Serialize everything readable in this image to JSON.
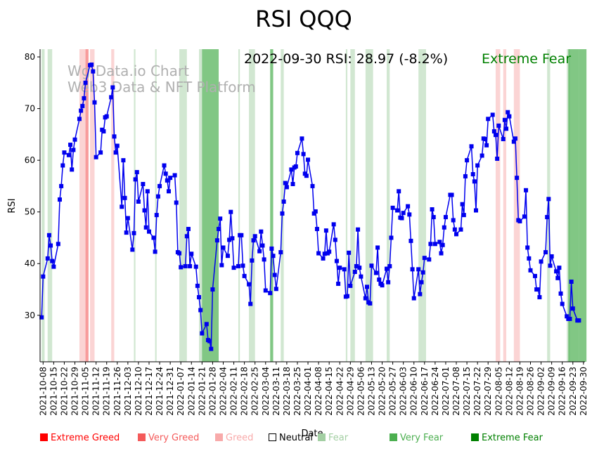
{
  "chart_data": {
    "type": "line",
    "title": "RSI QQQ",
    "xlabel": "Date",
    "ylabel": "RSI",
    "ylim": [
      21,
      81.5
    ],
    "yticks": [
      30,
      40,
      50,
      60,
      70,
      80
    ],
    "x_start": "2021-10-06",
    "x_end": "2022-10-01",
    "xticks": [
      "2021-10-08",
      "2021-10-15",
      "2021-10-22",
      "2021-10-29",
      "2021-11-05",
      "2021-11-12",
      "2021-11-19",
      "2021-11-26",
      "2021-12-03",
      "2021-12-10",
      "2021-12-17",
      "2021-12-24",
      "2021-12-31",
      "2022-01-07",
      "2022-01-14",
      "2022-01-21",
      "2022-01-28",
      "2022-02-04",
      "2022-02-11",
      "2022-02-18",
      "2022-02-25",
      "2022-03-04",
      "2022-03-11",
      "2022-03-18",
      "2022-03-25",
      "2022-04-01",
      "2022-04-08",
      "2022-04-15",
      "2022-04-22",
      "2022-04-29",
      "2022-05-06",
      "2022-05-13",
      "2022-05-20",
      "2022-05-27",
      "2022-06-03",
      "2022-06-10",
      "2022-06-17",
      "2022-06-24",
      "2022-07-01",
      "2022-07-08",
      "2022-07-15",
      "2022-07-22",
      "2022-07-29",
      "2022-08-05",
      "2022-08-12",
      "2022-08-19",
      "2022-08-26",
      "2022-09-02",
      "2022-09-09",
      "2022-09-16",
      "2022-09-23",
      "2022-09-30"
    ],
    "series": [
      {
        "name": "RSI",
        "color": "#0000ee",
        "values": [
          29.6,
          37.5,
          41,
          45.5,
          43.5,
          40.5,
          39.4,
          43.8,
          52.4,
          55,
          59,
          61.5,
          61,
          63,
          58.2,
          62,
          64,
          68,
          69.6,
          70.5,
          72,
          75,
          78.4,
          78.5,
          77.2,
          71.2,
          60.6,
          61.5,
          65.9,
          65.6,
          68.3,
          68.5,
          72.2,
          74.1,
          64.6,
          61.5,
          62.8,
          51,
          60,
          52.7,
          46,
          48.8,
          42.7,
          45.9,
          56.3,
          57.7,
          52,
          55.4,
          50.3,
          47,
          54,
          46.2,
          45,
          42.3,
          49.4,
          53,
          55,
          59,
          57.4,
          56.1,
          54,
          56.6,
          57.1,
          51.8,
          42.2,
          42,
          39.3,
          39.5,
          45.3,
          46.7,
          39.5,
          41.9,
          39.4,
          35.7,
          33.5,
          31,
          26.5,
          28.3,
          25.2,
          25,
          23.5,
          35,
          44.5,
          46.7,
          48.7,
          39.7,
          43.1,
          41.5,
          44.6,
          50,
          44.9,
          39.2,
          39.5,
          45.5,
          45.5,
          39.6,
          37.6,
          36,
          32.2,
          40.6,
          44.5,
          45.3,
          42.4,
          46.2,
          43.5,
          40.8,
          34.8,
          34.3,
          42.9,
          41.5,
          37.8,
          35.1,
          42.2,
          49.7,
          52,
          55.6,
          54.8,
          58.2,
          55.4,
          58.6,
          58.8,
          61.4,
          64.2,
          61.2,
          57.4,
          57,
          60.1,
          55,
          49.7,
          50.1,
          46.7,
          42,
          41,
          41.9,
          46.4,
          42,
          42.3,
          47.6,
          44.6,
          40.5,
          36.1,
          39.2,
          38.9,
          33.6,
          33.7,
          42.1,
          35.7,
          38.4,
          39.5,
          46.6,
          39.2,
          37.5,
          33.3,
          35.5,
          32.5,
          32.3,
          39.6,
          38.2,
          43.1,
          36.9,
          36.1,
          35.8,
          39,
          36.4,
          39.5,
          45,
          50.8,
          50.3,
          54,
          48.9,
          48.8,
          49.8,
          51.1,
          49.5,
          44.4,
          38.9,
          33.3,
          38.9,
          34.1,
          36.4,
          38.3,
          41.1,
          40.8,
          43.8,
          50.5,
          49,
          43.8,
          44.2,
          42,
          43.6,
          47,
          49,
          53.3,
          53.3,
          48.4,
          46.6,
          45.7,
          46.6,
          51.5,
          49.4,
          56.9,
          60,
          62.7,
          57.3,
          55.9,
          50.3,
          59,
          60.9,
          64.2,
          64.1,
          62.9,
          68,
          68.8,
          65.6,
          64.9,
          60.3,
          66.7,
          64.1,
          67.8,
          66.1,
          69.3,
          68.5,
          63.6,
          64.2,
          56.6,
          48.4,
          48.2,
          49.1,
          54.2,
          43.1,
          41,
          38.7,
          37.6,
          35,
          35,
          33.5,
          40.4,
          42.2,
          49,
          52.5,
          39.6,
          41.4,
          38.5,
          37.2,
          39.2,
          34.2,
          32.2,
          29.8,
          29.3,
          29.3,
          36.5,
          31.3,
          29,
          29
        ]
      }
    ],
    "zone_colors": {
      "extreme_greed": "#ff0000",
      "very_greed": "#f45a5a",
      "greed": "#f8aaaa",
      "fear": "#a3cfa3",
      "very_fear": "#4caf50",
      "extreme_fear": "#008000"
    },
    "zones": [
      {
        "start": "2021-10-07",
        "end": "2021-10-08",
        "level": "fear"
      },
      {
        "start": "2021-10-11",
        "end": "2021-10-13",
        "level": "fear"
      },
      {
        "start": "2021-11-01",
        "end": "2021-11-04",
        "level": "greed"
      },
      {
        "start": "2021-11-05",
        "end": "2021-11-06",
        "level": "very_greed"
      },
      {
        "start": "2021-11-08",
        "end": "2021-11-10",
        "level": "greed"
      },
      {
        "start": "2021-11-22",
        "end": "2021-11-23",
        "level": "greed"
      },
      {
        "start": "2021-12-07",
        "end": "2021-12-07",
        "level": "fear"
      },
      {
        "start": "2021-12-21",
        "end": "2021-12-21",
        "level": "fear"
      },
      {
        "start": "2022-01-06",
        "end": "2022-01-10",
        "level": "fear"
      },
      {
        "start": "2022-01-19",
        "end": "2022-01-20",
        "level": "fear"
      },
      {
        "start": "2022-01-21",
        "end": "2022-01-31",
        "level": "very_fear"
      },
      {
        "start": "2022-02-14",
        "end": "2022-02-14",
        "level": "fear"
      },
      {
        "start": "2022-02-21",
        "end": "2022-02-24",
        "level": "fear"
      },
      {
        "start": "2022-03-07",
        "end": "2022-03-08",
        "level": "very_fear"
      },
      {
        "start": "2022-03-14",
        "end": "2022-03-15",
        "level": "fear"
      },
      {
        "start": "2022-04-26",
        "end": "2022-04-26",
        "level": "fear"
      },
      {
        "start": "2022-04-29",
        "end": "2022-05-01",
        "level": "fear"
      },
      {
        "start": "2022-05-09",
        "end": "2022-05-13",
        "level": "fear"
      },
      {
        "start": "2022-05-23",
        "end": "2022-05-24",
        "level": "fear"
      },
      {
        "start": "2022-06-13",
        "end": "2022-06-15",
        "level": "fear"
      },
      {
        "start": "2022-06-16",
        "end": "2022-06-17",
        "level": "fear"
      },
      {
        "start": "2022-08-03",
        "end": "2022-08-05",
        "level": "greed"
      },
      {
        "start": "2022-08-08",
        "end": "2022-08-09",
        "level": "greed"
      },
      {
        "start": "2022-08-15",
        "end": "2022-08-18",
        "level": "greed"
      },
      {
        "start": "2022-09-06",
        "end": "2022-09-07",
        "level": "fear"
      },
      {
        "start": "2022-09-19",
        "end": "2022-09-20",
        "level": "fear"
      },
      {
        "start": "2022-09-20",
        "end": "2022-09-26",
        "level": "very_fear"
      },
      {
        "start": "2022-09-27",
        "end": "2022-10-01",
        "level": "very_fear"
      }
    ],
    "annotations": {
      "latest": "2022-09-30 RSI: 28.97 (-8.2%)",
      "sentiment": "Extreme Fear",
      "sentiment_color": "#008000",
      "watermark_line1": "Wg-Data.io Chart",
      "watermark_line2": "Web3 Data & NFT Platform"
    },
    "legend": [
      {
        "label": "Extreme Greed",
        "color": "#ff0000"
      },
      {
        "label": "Very Greed",
        "color": "#f45a5a"
      },
      {
        "label": "Greed",
        "color": "#f8aaaa"
      },
      {
        "label": "Neutral",
        "color": "#000000"
      },
      {
        "label": "Fear",
        "color": "#a3cfa3"
      },
      {
        "label": "Very Fear",
        "color": "#4caf50"
      },
      {
        "label": "Extreme Fear",
        "color": "#008000"
      }
    ]
  }
}
